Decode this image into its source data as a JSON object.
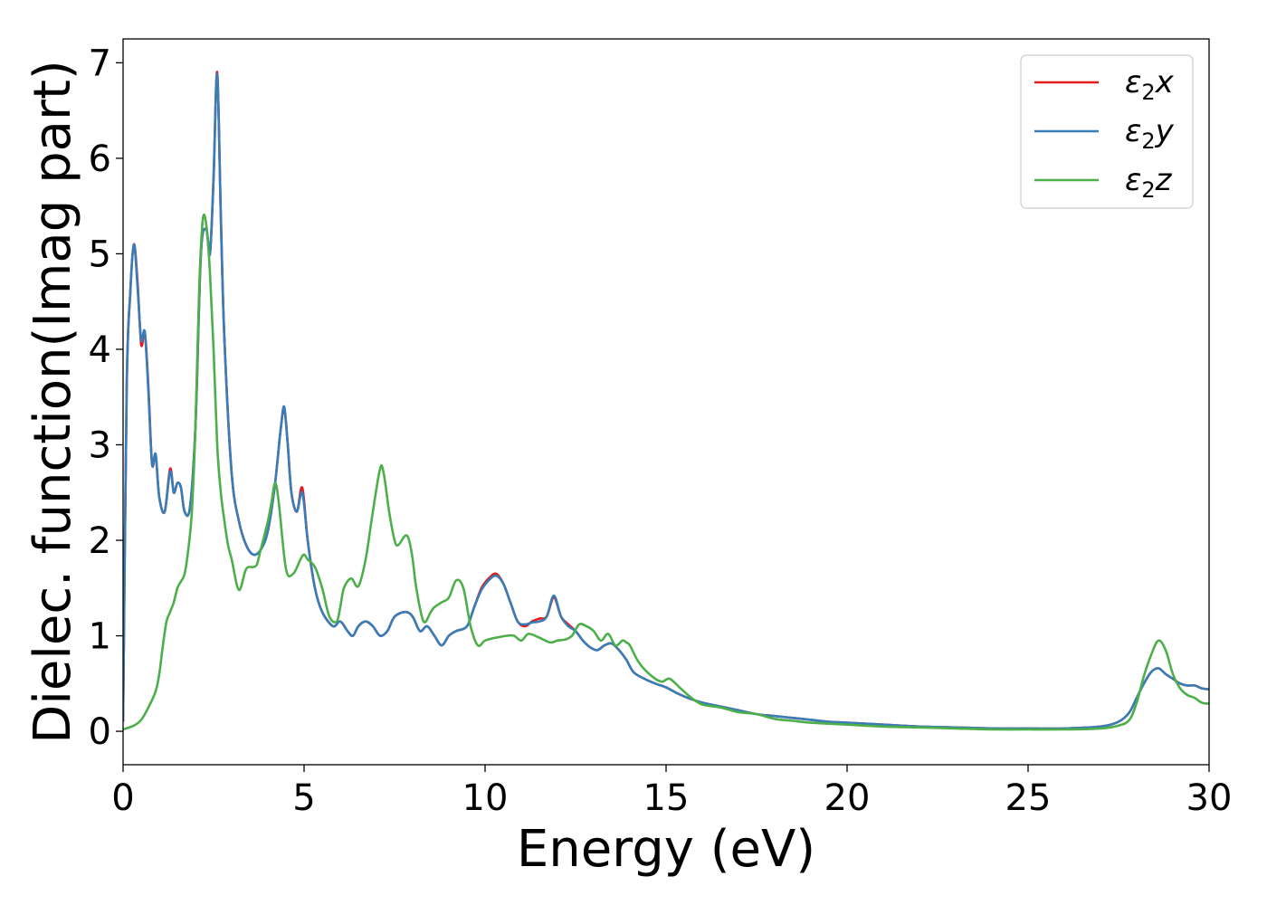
{
  "chart_data": {
    "type": "line",
    "title": "",
    "xlabel": "Energy (eV)",
    "ylabel": "Dielec. function(Imag part)",
    "xlim": [
      0,
      30
    ],
    "ylim": [
      -0.35,
      7.25
    ],
    "xticks": [
      0,
      5,
      10,
      15,
      20,
      25,
      30
    ],
    "yticks": [
      0,
      1,
      2,
      3,
      4,
      5,
      6,
      7
    ],
    "grid": false,
    "legend_position": "top-right",
    "series": [
      {
        "name": "ε2x",
        "name_base": "ε",
        "name_sub": "2",
        "name_var": "x",
        "color": "#e41a1c",
        "x": [
          0,
          0.1,
          0.2,
          0.3,
          0.4,
          0.5,
          0.6,
          0.7,
          0.8,
          0.9,
          1.0,
          1.15,
          1.3,
          1.4,
          1.5,
          1.6,
          1.7,
          1.85,
          2.0,
          2.15,
          2.3,
          2.4,
          2.5,
          2.6,
          2.7,
          2.8,
          3.0,
          3.2,
          3.4,
          3.6,
          3.8,
          4.0,
          4.2,
          4.35,
          4.45,
          4.55,
          4.65,
          4.8,
          4.95,
          5.1,
          5.3,
          5.5,
          5.8,
          6.0,
          6.2,
          6.35,
          6.5,
          6.7,
          6.9,
          7.1,
          7.3,
          7.5,
          7.8,
          8.0,
          8.2,
          8.4,
          8.6,
          8.8,
          9.0,
          9.2,
          9.5,
          9.7,
          9.9,
          10.1,
          10.3,
          10.5,
          10.7,
          10.9,
          11.1,
          11.3,
          11.5,
          11.7,
          11.9,
          12.1,
          12.3,
          12.5,
          12.7,
          12.9,
          13.1,
          13.3,
          13.5,
          13.7,
          13.9,
          14.1,
          14.4,
          14.7,
          15.0,
          15.3,
          15.6,
          16.0,
          16.5,
          17.0,
          17.5,
          18.0,
          18.5,
          19.0,
          19.5,
          20.0,
          21.0,
          22.0,
          23.0,
          24.0,
          25.0,
          26.0,
          27.0,
          27.5,
          27.8,
          28.0,
          28.2,
          28.4,
          28.6,
          28.8,
          29.0,
          29.2,
          29.4,
          29.6,
          29.8,
          30.0
        ],
        "values": [
          0.1,
          3.6,
          4.6,
          5.1,
          4.7,
          4.05,
          4.18,
          3.6,
          2.8,
          2.9,
          2.45,
          2.3,
          2.75,
          2.5,
          2.6,
          2.55,
          2.3,
          2.35,
          3.2,
          5.0,
          5.25,
          5.0,
          5.8,
          6.9,
          5.4,
          4.1,
          2.7,
          2.2,
          1.95,
          1.85,
          1.9,
          2.1,
          2.6,
          3.15,
          3.38,
          3.0,
          2.5,
          2.3,
          2.55,
          2.0,
          1.5,
          1.25,
          1.1,
          1.15,
          1.05,
          1.0,
          1.1,
          1.15,
          1.1,
          1.0,
          1.05,
          1.2,
          1.25,
          1.2,
          1.05,
          1.1,
          1.0,
          0.9,
          1.0,
          1.05,
          1.1,
          1.3,
          1.5,
          1.6,
          1.65,
          1.55,
          1.35,
          1.15,
          1.1,
          1.15,
          1.18,
          1.2,
          1.4,
          1.2,
          1.12,
          1.05,
          0.95,
          0.88,
          0.85,
          0.9,
          0.92,
          0.85,
          0.75,
          0.62,
          0.55,
          0.5,
          0.46,
          0.4,
          0.35,
          0.3,
          0.26,
          0.22,
          0.18,
          0.16,
          0.14,
          0.12,
          0.1,
          0.09,
          0.07,
          0.05,
          0.04,
          0.03,
          0.03,
          0.03,
          0.05,
          0.1,
          0.2,
          0.35,
          0.5,
          0.62,
          0.66,
          0.6,
          0.55,
          0.5,
          0.48,
          0.48,
          0.45,
          0.44
        ]
      },
      {
        "name": "ε2y",
        "name_base": "ε",
        "name_sub": "2",
        "name_var": "y",
        "color": "#377eb8",
        "x": [
          0,
          0.1,
          0.2,
          0.3,
          0.4,
          0.5,
          0.6,
          0.7,
          0.8,
          0.9,
          1.0,
          1.15,
          1.3,
          1.4,
          1.5,
          1.6,
          1.7,
          1.85,
          2.0,
          2.15,
          2.3,
          2.4,
          2.5,
          2.6,
          2.7,
          2.8,
          3.0,
          3.2,
          3.4,
          3.6,
          3.8,
          4.0,
          4.2,
          4.35,
          4.45,
          4.55,
          4.65,
          4.8,
          4.95,
          5.1,
          5.3,
          5.5,
          5.8,
          6.0,
          6.2,
          6.35,
          6.5,
          6.7,
          6.9,
          7.1,
          7.3,
          7.5,
          7.8,
          8.0,
          8.2,
          8.4,
          8.6,
          8.8,
          9.0,
          9.2,
          9.5,
          9.7,
          9.9,
          10.1,
          10.3,
          10.5,
          10.7,
          10.9,
          11.1,
          11.3,
          11.5,
          11.7,
          11.9,
          12.1,
          12.3,
          12.5,
          12.7,
          12.9,
          13.1,
          13.3,
          13.5,
          13.7,
          13.9,
          14.1,
          14.4,
          14.7,
          15.0,
          15.3,
          15.6,
          16.0,
          16.5,
          17.0,
          17.5,
          18.0,
          18.5,
          19.0,
          19.5,
          20.0,
          21.0,
          22.0,
          23.0,
          24.0,
          25.0,
          26.0,
          27.0,
          27.5,
          27.8,
          28.0,
          28.2,
          28.4,
          28.6,
          28.8,
          29.0,
          29.2,
          29.4,
          29.6,
          29.8,
          30.0
        ],
        "values": [
          0.1,
          3.6,
          4.6,
          5.1,
          4.65,
          4.1,
          4.18,
          3.55,
          2.8,
          2.9,
          2.45,
          2.3,
          2.72,
          2.5,
          2.6,
          2.55,
          2.3,
          2.35,
          3.2,
          5.0,
          5.25,
          5.0,
          5.8,
          6.88,
          5.4,
          4.1,
          2.7,
          2.2,
          1.95,
          1.85,
          1.9,
          2.1,
          2.6,
          3.15,
          3.4,
          3.0,
          2.5,
          2.3,
          2.5,
          2.0,
          1.5,
          1.25,
          1.1,
          1.15,
          1.05,
          1.0,
          1.1,
          1.15,
          1.1,
          1.0,
          1.05,
          1.2,
          1.25,
          1.2,
          1.05,
          1.1,
          1.0,
          0.9,
          1.0,
          1.05,
          1.1,
          1.3,
          1.48,
          1.58,
          1.63,
          1.55,
          1.35,
          1.15,
          1.12,
          1.14,
          1.15,
          1.2,
          1.42,
          1.2,
          1.1,
          1.05,
          0.95,
          0.88,
          0.85,
          0.9,
          0.92,
          0.85,
          0.75,
          0.62,
          0.55,
          0.5,
          0.46,
          0.4,
          0.35,
          0.3,
          0.26,
          0.22,
          0.18,
          0.16,
          0.14,
          0.12,
          0.1,
          0.09,
          0.07,
          0.05,
          0.04,
          0.03,
          0.03,
          0.03,
          0.05,
          0.1,
          0.2,
          0.35,
          0.5,
          0.62,
          0.66,
          0.6,
          0.55,
          0.5,
          0.48,
          0.48,
          0.45,
          0.44
        ]
      },
      {
        "name": "ε2z",
        "name_base": "ε",
        "name_sub": "2",
        "name_var": "z",
        "color": "#4daf4a",
        "x": [
          0,
          0.3,
          0.5,
          0.7,
          0.9,
          1.0,
          1.1,
          1.2,
          1.3,
          1.4,
          1.5,
          1.6,
          1.7,
          1.8,
          1.9,
          2.0,
          2.1,
          2.2,
          2.3,
          2.4,
          2.5,
          2.6,
          2.7,
          2.8,
          2.9,
          3.0,
          3.2,
          3.4,
          3.6,
          3.7,
          3.8,
          4.0,
          4.1,
          4.2,
          4.3,
          4.5,
          4.7,
          4.9,
          5.0,
          5.1,
          5.3,
          5.5,
          5.7,
          5.9,
          6.0,
          6.1,
          6.3,
          6.5,
          6.7,
          6.9,
          7.1,
          7.2,
          7.35,
          7.5,
          7.6,
          7.8,
          7.9,
          8.0,
          8.1,
          8.3,
          8.5,
          8.6,
          8.8,
          9.0,
          9.2,
          9.4,
          9.6,
          9.8,
          10.0,
          10.3,
          10.6,
          10.8,
          11.0,
          11.2,
          11.5,
          11.8,
          12.0,
          12.2,
          12.4,
          12.6,
          12.8,
          13.0,
          13.2,
          13.4,
          13.6,
          13.8,
          13.9,
          14.0,
          14.2,
          14.4,
          14.7,
          14.9,
          15.1,
          15.4,
          15.7,
          16.0,
          16.5,
          17.0,
          17.5,
          18.0,
          18.5,
          19.0,
          20.0,
          21.0,
          22.0,
          23.0,
          24.0,
          25.0,
          26.0,
          27.0,
          27.5,
          27.8,
          28.0,
          28.2,
          28.4,
          28.6,
          28.8,
          29.0,
          29.2,
          29.4,
          29.6,
          29.8,
          30.0
        ],
        "values": [
          0.02,
          0.06,
          0.12,
          0.25,
          0.42,
          0.6,
          0.9,
          1.15,
          1.25,
          1.35,
          1.5,
          1.57,
          1.65,
          1.9,
          2.3,
          3.2,
          4.6,
          5.35,
          5.3,
          4.8,
          4.0,
          3.0,
          2.5,
          2.2,
          1.95,
          1.8,
          1.48,
          1.7,
          1.72,
          1.75,
          1.9,
          2.2,
          2.4,
          2.6,
          2.4,
          1.7,
          1.65,
          1.8,
          1.85,
          1.8,
          1.72,
          1.5,
          1.2,
          1.15,
          1.3,
          1.5,
          1.6,
          1.52,
          1.8,
          2.3,
          2.75,
          2.7,
          2.3,
          2.0,
          1.95,
          2.05,
          2.0,
          1.8,
          1.5,
          1.15,
          1.25,
          1.3,
          1.35,
          1.4,
          1.58,
          1.5,
          1.1,
          0.9,
          0.95,
          0.98,
          1.0,
          1.0,
          0.95,
          1.02,
          0.98,
          0.93,
          0.95,
          0.96,
          1.0,
          1.12,
          1.1,
          1.05,
          0.95,
          1.02,
          0.9,
          0.95,
          0.93,
          0.9,
          0.75,
          0.65,
          0.55,
          0.52,
          0.55,
          0.45,
          0.35,
          0.28,
          0.25,
          0.2,
          0.18,
          0.13,
          0.11,
          0.09,
          0.07,
          0.05,
          0.04,
          0.03,
          0.02,
          0.02,
          0.02,
          0.03,
          0.06,
          0.12,
          0.3,
          0.58,
          0.8,
          0.95,
          0.85,
          0.6,
          0.45,
          0.38,
          0.35,
          0.3,
          0.29
        ]
      }
    ]
  }
}
